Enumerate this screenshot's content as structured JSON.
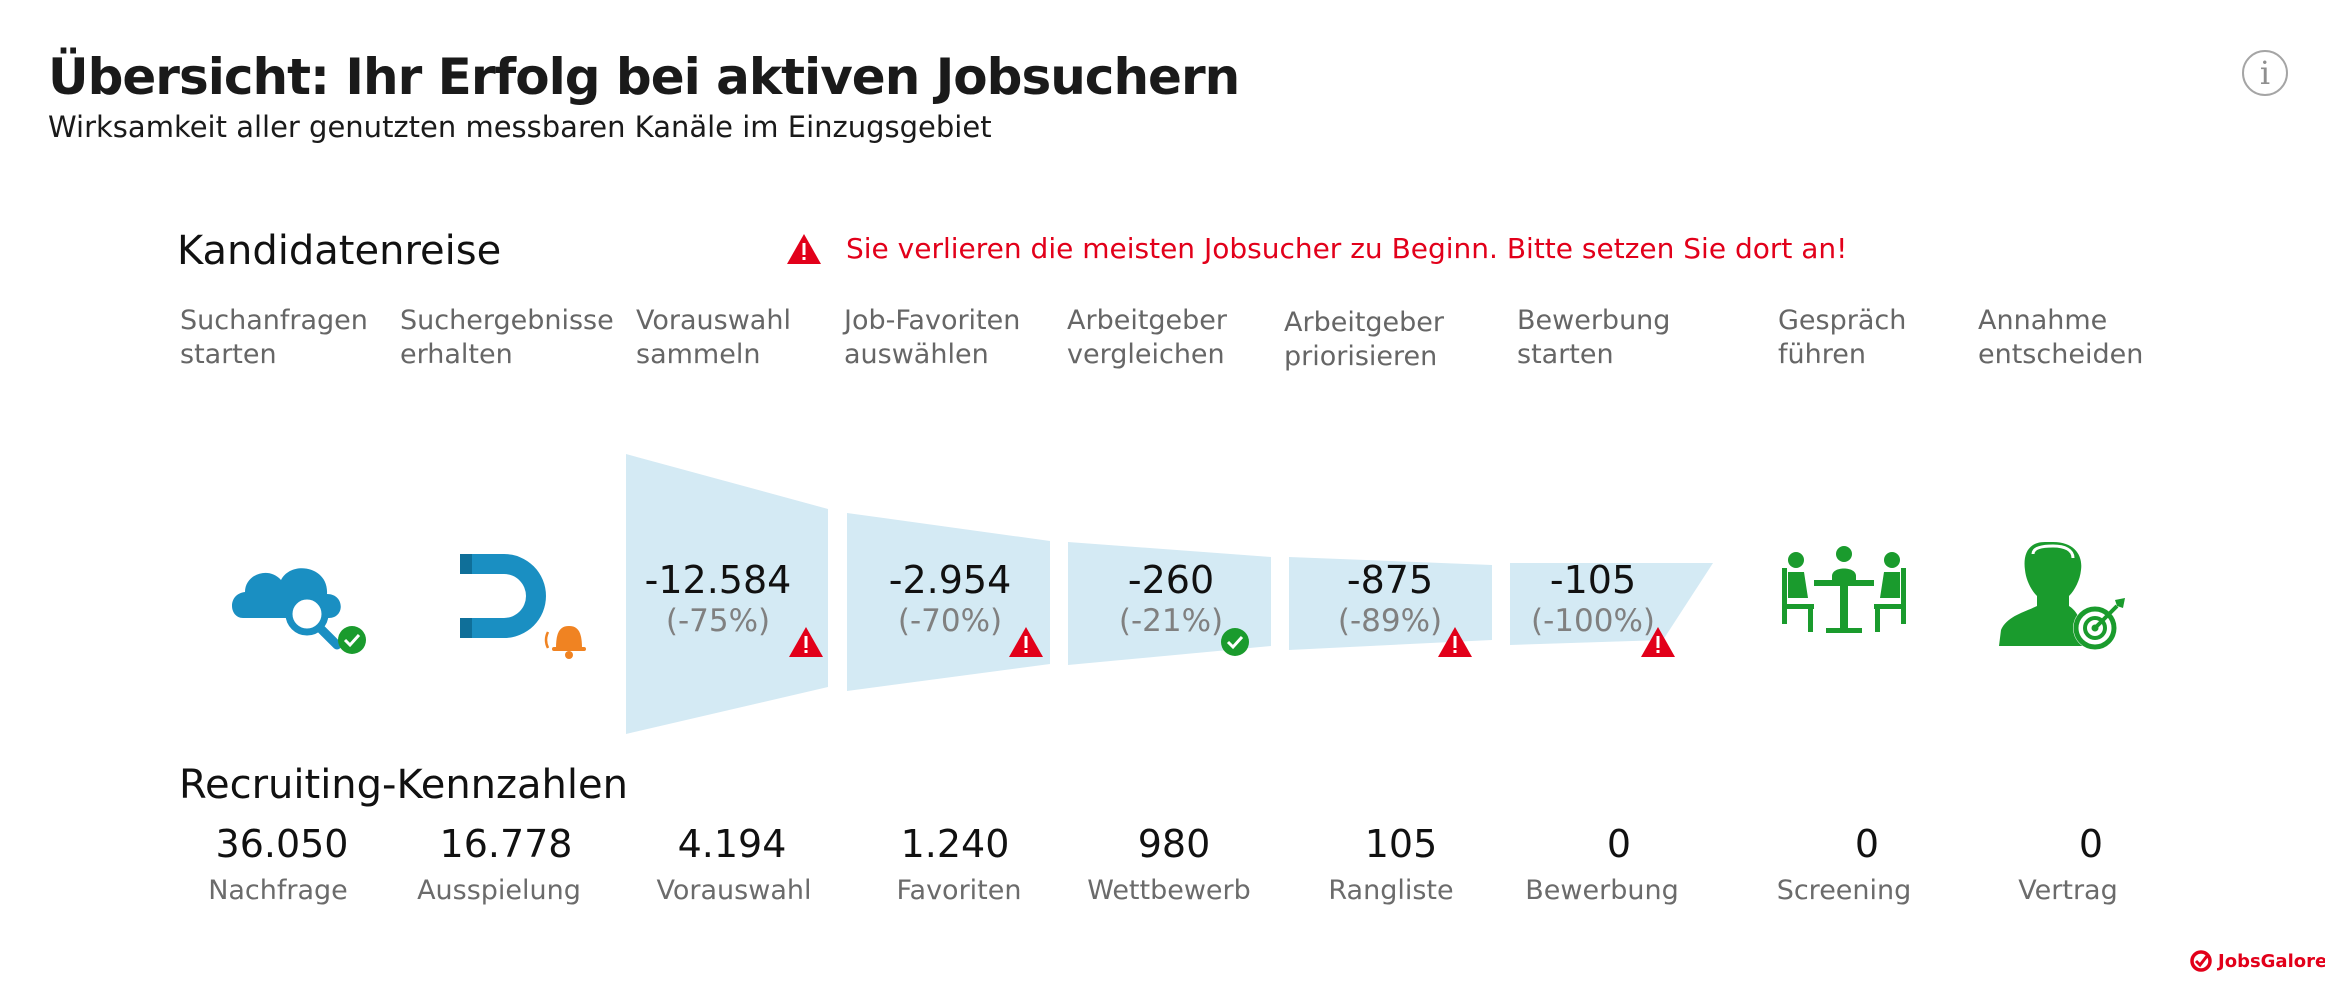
{
  "header": {
    "title": "Übersicht: Ihr Erfolg bei aktiven Jobsuchern",
    "subtitle": "Wirksamkeit aller genutzten messbaren Kanäle im Einzugsgebiet",
    "info_icon": "info-icon"
  },
  "journey": {
    "heading": "Kandidatenreise",
    "warning_text": "Sie verlieren die meisten Jobsucher zu Beginn. Bitte setzen Sie dort an!",
    "steps": [
      {
        "label": "Suchanfragen\nstarten",
        "icon": "cloud-search-icon"
      },
      {
        "label": "Suchergebnisse\nerhalten",
        "icon": "magnet-icon"
      },
      {
        "label": "Vorauswahl\nsammeln"
      },
      {
        "label": "Job-Favoriten\nauswählen"
      },
      {
        "label": "Arbeitgeber\nvergleichen"
      },
      {
        "label": "Arbeitgeber\npriorisieren"
      },
      {
        "label": "Bewerbung\nstarten"
      },
      {
        "label": "Gespräch\nführen",
        "icon": "meeting-icon"
      },
      {
        "label": "Annahme\nentscheiden",
        "icon": "person-target-icon"
      }
    ],
    "drops": [
      {
        "value": "-12.584",
        "percent": "(-75%)",
        "status": "warning"
      },
      {
        "value": "-2.954",
        "percent": "(-70%)",
        "status": "warning"
      },
      {
        "value": "-260",
        "percent": "(-21%)",
        "status": "ok"
      },
      {
        "value": "-875",
        "percent": "(-89%)",
        "status": "warning"
      },
      {
        "value": "-105",
        "percent": "(-100%)",
        "status": "warning"
      }
    ]
  },
  "kpis": {
    "heading": "Recruiting-Kennzahlen",
    "items": [
      {
        "value": "36.050",
        "label": "Nachfrage"
      },
      {
        "value": "16.778",
        "label": "Ausspielung"
      },
      {
        "value": "4.194",
        "label": "Vorauswahl"
      },
      {
        "value": "1.240",
        "label": "Favoriten"
      },
      {
        "value": "980",
        "label": "Wettbewerb"
      },
      {
        "value": "105",
        "label": "Rangliste"
      },
      {
        "value": "0",
        "label": "Bewerbung"
      },
      {
        "value": "0",
        "label": "Screening"
      },
      {
        "value": "0",
        "label": "Vertrag"
      }
    ]
  },
  "brand": {
    "name": "JobsGalore."
  },
  "colors": {
    "funnel": "#d4eaf4",
    "blue_icon": "#1a8fc2",
    "green": "#1a9b2d",
    "alert_red": "#e2001a",
    "bell_orange": "#f08322"
  }
}
